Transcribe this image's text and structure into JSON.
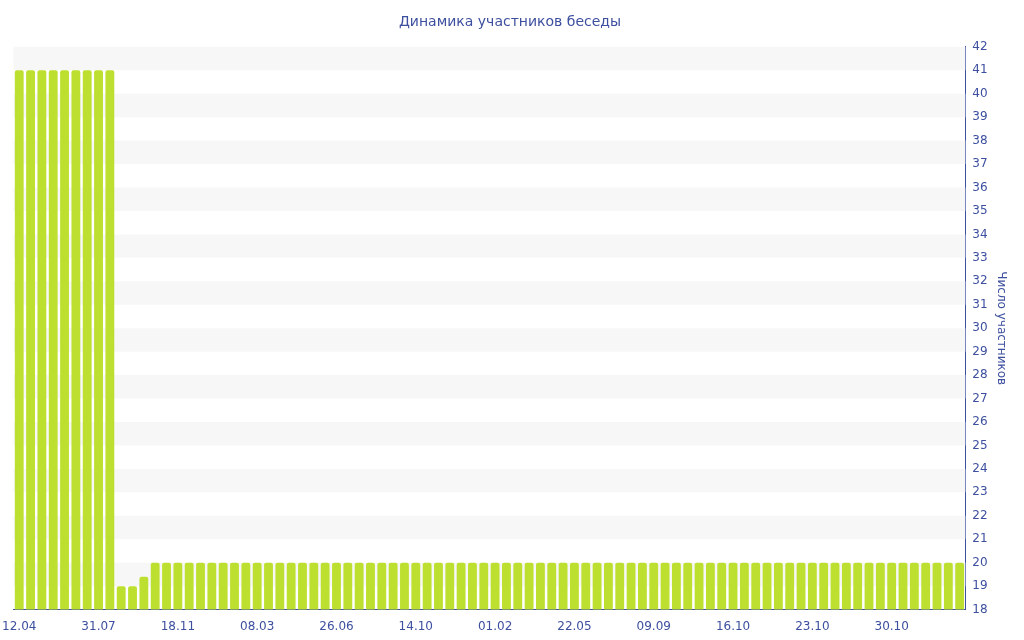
{
  "chart_data": {
    "type": "bar",
    "title": "Динамика участников беседы",
    "ylabel": "Число участников",
    "categories": [
      "12.04",
      null,
      null,
      null,
      null,
      null,
      null,
      "31.07",
      null,
      null,
      null,
      null,
      null,
      null,
      "18.11",
      null,
      null,
      null,
      null,
      null,
      null,
      "08.03",
      null,
      null,
      null,
      null,
      null,
      null,
      "26.06",
      null,
      null,
      null,
      null,
      null,
      null,
      "14.10",
      null,
      null,
      null,
      null,
      null,
      null,
      "01.02",
      null,
      null,
      null,
      null,
      null,
      null,
      "22.05",
      null,
      null,
      null,
      null,
      null,
      null,
      "09.09",
      null,
      null,
      null,
      null,
      null,
      null,
      "16.10",
      null,
      null,
      null,
      null,
      null,
      null,
      "23.10",
      null,
      null,
      null,
      null,
      null,
      null,
      "30.10",
      null,
      null,
      null,
      null,
      null,
      null
    ],
    "values": [
      41,
      41,
      41,
      41,
      41,
      41,
      41,
      41,
      41,
      19,
      19,
      19.4,
      20,
      20,
      20,
      20,
      20,
      20,
      20,
      20,
      20,
      20,
      20,
      20,
      20,
      20,
      20,
      20,
      20,
      20,
      20,
      20,
      20,
      20,
      20,
      20,
      20,
      20,
      20,
      20,
      20,
      20,
      20,
      20,
      20,
      20,
      20,
      20,
      20,
      20,
      20,
      20,
      20,
      20,
      20,
      20,
      20,
      20,
      20,
      20,
      20,
      20,
      20,
      20,
      20,
      20,
      20,
      20,
      20,
      20,
      20,
      20,
      20,
      20,
      20,
      20,
      20,
      20,
      20,
      20,
      20,
      20,
      20,
      20
    ],
    "color": "#bddf2f",
    "ylim": [
      18,
      42
    ],
    "yticks": [
      18,
      19,
      20,
      21,
      22,
      23,
      24,
      25,
      26,
      27,
      28,
      29,
      30,
      31,
      32,
      33,
      34,
      35,
      36,
      37,
      38,
      39,
      40,
      41,
      42
    ],
    "bands": [
      {
        "axis": "y",
        "from": 19,
        "to": 20,
        "color": "#f7f7f7"
      },
      {
        "axis": "y",
        "from": 21,
        "to": 22,
        "color": "#f7f7f7"
      },
      {
        "axis": "y",
        "from": 23,
        "to": 24,
        "color": "#f7f7f7"
      },
      {
        "axis": "y",
        "from": 25,
        "to": 26,
        "color": "#f7f7f7"
      },
      {
        "axis": "y",
        "from": 27,
        "to": 28,
        "color": "#f7f7f7"
      },
      {
        "axis": "y",
        "from": 29,
        "to": 30,
        "color": "#f7f7f7"
      },
      {
        "axis": "y",
        "from": 31,
        "to": 32,
        "color": "#f7f7f7"
      },
      {
        "axis": "y",
        "from": 33,
        "to": 34,
        "color": "#f7f7f7"
      },
      {
        "axis": "y",
        "from": 35,
        "to": 36,
        "color": "#f7f7f7"
      },
      {
        "axis": "y",
        "from": 37,
        "to": 38,
        "color": "#f7f7f7"
      },
      {
        "axis": "y",
        "from": 39,
        "to": 40,
        "color": "#f7f7f7"
      },
      {
        "axis": "y",
        "from": 41,
        "to": 42,
        "color": "#f7f7f7"
      }
    ]
  }
}
